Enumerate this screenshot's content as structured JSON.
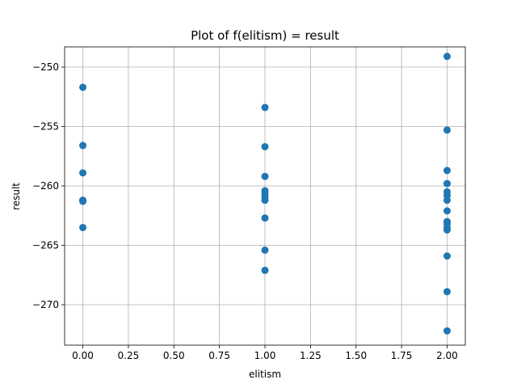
{
  "chart_data": {
    "type": "scatter",
    "title": "Plot of f(elitism) = result",
    "xlabel": "elitism",
    "ylabel": "result",
    "xlim": [
      -0.1,
      2.1
    ],
    "ylim": [
      -273.4,
      -248.3
    ],
    "xticks": [
      0.0,
      0.25,
      0.5,
      0.75,
      1.0,
      1.25,
      1.5,
      1.75,
      2.0
    ],
    "xtick_labels": [
      "0.00",
      "0.25",
      "0.50",
      "0.75",
      "1.00",
      "1.25",
      "1.50",
      "1.75",
      "2.00"
    ],
    "yticks": [
      -250,
      -255,
      -260,
      -265,
      -270
    ],
    "ytick_labels": [
      "−250",
      "−255",
      "−260",
      "−265",
      "−270"
    ],
    "grid": true,
    "marker_color": "#1f77b4",
    "points": [
      {
        "x": 0,
        "y": -251.7
      },
      {
        "x": 0,
        "y": -256.6
      },
      {
        "x": 0,
        "y": -258.9
      },
      {
        "x": 0,
        "y": -261.2
      },
      {
        "x": 0,
        "y": -261.3
      },
      {
        "x": 0,
        "y": -263.5
      },
      {
        "x": 1,
        "y": -253.4
      },
      {
        "x": 1,
        "y": -256.7
      },
      {
        "x": 1,
        "y": -259.2
      },
      {
        "x": 1,
        "y": -260.4
      },
      {
        "x": 1,
        "y": -260.6
      },
      {
        "x": 1,
        "y": -260.9
      },
      {
        "x": 1,
        "y": -261.2
      },
      {
        "x": 1,
        "y": -262.7
      },
      {
        "x": 1,
        "y": -265.4
      },
      {
        "x": 1,
        "y": -267.1
      },
      {
        "x": 2,
        "y": -249.1
      },
      {
        "x": 2,
        "y": -255.3
      },
      {
        "x": 2,
        "y": -258.7
      },
      {
        "x": 2,
        "y": -259.8
      },
      {
        "x": 2,
        "y": -260.5
      },
      {
        "x": 2,
        "y": -260.8
      },
      {
        "x": 2,
        "y": -261.2
      },
      {
        "x": 2,
        "y": -262.1
      },
      {
        "x": 2,
        "y": -263.0
      },
      {
        "x": 2,
        "y": -263.2
      },
      {
        "x": 2,
        "y": -263.5
      },
      {
        "x": 2,
        "y": -263.7
      },
      {
        "x": 2,
        "y": -265.9
      },
      {
        "x": 2,
        "y": -268.9
      },
      {
        "x": 2,
        "y": -272.2
      }
    ]
  }
}
